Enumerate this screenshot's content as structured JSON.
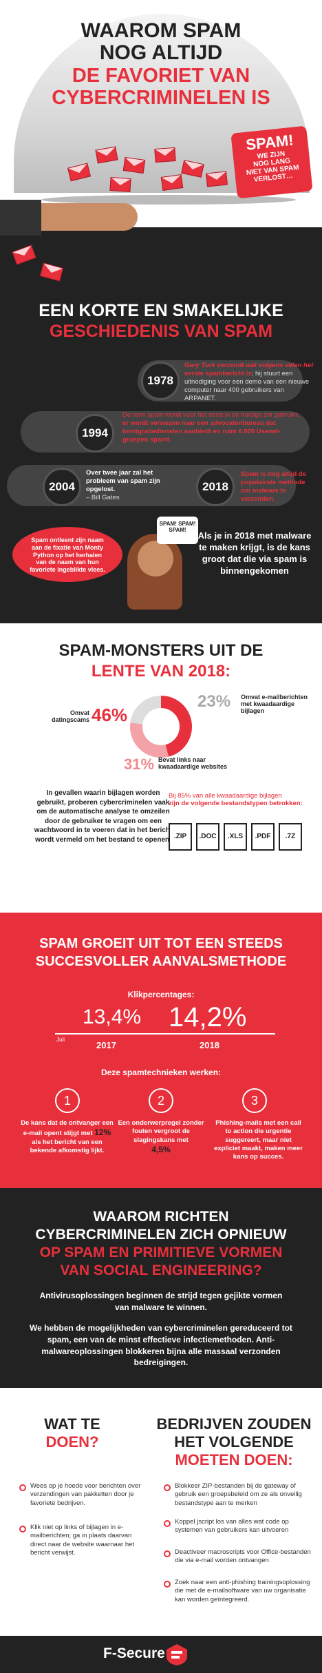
{
  "hero": {
    "title1": "WAAROM SPAM",
    "title2": "NOG ALTIJD",
    "title3": "DE FAVORIET VAN",
    "title4": "CYBERCRIMINELEN IS",
    "bubble_big": "SPAM!",
    "bubble_small1": "WE ZIJN",
    "bubble_small2": "NOG LANG",
    "bubble_small3": "NIET VAN SPAM",
    "bubble_small4": "VERLOST…"
  },
  "history": {
    "title1": "EEN KORTE EN SMAKELIJKE",
    "title2": "GESCHIEDENIS VAN SPAM",
    "y1978": "1978",
    "t1978a": "Gary Turk verzendt wat volgens velen het",
    "t1978b": "eerste spambericht is",
    "t1978c": "hij stuurt een uitnodiging voor een demo van een nieuwe computer naar 400 gebruikers van ARPANET.",
    "y1994": "1994",
    "t1994a": "De term spam wordt voor het eerst in de huidige zin gebruikt;",
    "t1994b": "er wordt verwezen naar een advocatenbureau dat immigratiediensten aanbiedt en ruim 6.000 Usenet-groepen spamt.",
    "y2004": "2004",
    "t2004a": "Over twee jaar zal het probleem van spam zijn opgelost.",
    "t2004b": "– Bill Gates",
    "y2018": "2018",
    "t2018": "Spam is nog altijd de populairste methode om malware te verzenden.",
    "monty": "Spam ontleent zijn naam aan de fixatie van Monty Python op het herhalen van de naam van hun favoriete ingeblikte vlees.",
    "spambubble": "SPAM! SPAM! SPAM!",
    "malware": "Als je in 2018 met malware te maken krijgt, is de kans groot dat die via spam is binnengekomen"
  },
  "monsters": {
    "title1": "SPAM-MONSTERS UIT DE",
    "title2": "LENTE VAN 2018:",
    "p46": "46%",
    "l46": "Omvat datingscams",
    "p23": "23%",
    "l23": "Omvat e-mailberichten met kwaadaardige bijlagen",
    "p31": "31%",
    "l31": "Bevat links naar kwaadaardige websites",
    "left": "In gevallen waarin bijlagen worden gebruikt, proberen cybercriminelen vaak om de automatische analyse te omzeilen door de gebruiker te vragen om een wachtwoord in te voeren dat in het bericht wordt vermeld om het bestand te openen.",
    "right1": "Bij 85% van alle kwaadaardige bijlagen",
    "right2": "zijn de volgende bestandstypen betrokken:",
    "files": [
      ".ZIP",
      ".DOC",
      ".XLS",
      ".PDF",
      ".7Z"
    ]
  },
  "growth": {
    "title1": "SPAM GROEIT UIT TOT EEN STEEDS",
    "title2": "SUCCESVOLLER AANVALSMETHODE",
    "klik": "Klikpercentages:",
    "v2017": "13,4%",
    "v2018": "14,2%",
    "juli": "Juli",
    "y2017": "2017",
    "y2018": "2018",
    "tech": "Deze spamtechnieken werken:",
    "n1": "1",
    "n2": "2",
    "n3": "3",
    "c1a": "De kans dat de ontvanger een e-mail opent stijgt met",
    "c1b": "12%",
    "c1c": "als het bericht van een bekende afkomstig lijkt.",
    "c2a": "Een onderwerpregel zonder fouten vergroot de slagingskans met",
    "c2b": "4,5%",
    "c3": "Phishing-mails met een call to action die urgentie suggereert, maar niet expliciet maakt, maken meer kans op succes."
  },
  "why": {
    "title1": "WAAROM RICHTEN",
    "title2": "CYBERCRIMINELEN ZICH OPNIEUW",
    "title3": "OP SPAM EN PRIMITIEVE VORMEN",
    "title4": "VAN SOCIAL ENGINEERING?",
    "p1": "Antivirusoplossingen beginnen de strijd tegen gejikte vormen van malware te winnen.",
    "p2": "We hebben de mogelijkheden van cybercriminelen gereduceerd tot spam, een van de minst effectieve infectiemethoden. Anti-malwareoplossingen blokkeren bijna alle massaal verzonden bedreigingen."
  },
  "todo": {
    "l1": "WAT TE",
    "l2": "DOEN?",
    "r1": "BEDRIJVEN ZOUDEN",
    "r2": "HET VOLGENDE",
    "r3": "MOETEN DOEN:",
    "left_items": [
      "Wees op je hoede voor berichten over verzendingen van pakketten door je favoriete bedrijven.",
      "Klik niet op links of bijlagen in e-mailberichten; ga in plaats daarvan direct naar de website waarnaar het bericht verwijst."
    ],
    "right_items": [
      "Blokkeer ZIP-bestanden bij de gateway of gebruik een groepsbeleid om ze als onveilig bestandstype aan te merken",
      "Koppel jscript los van alles wat code op systemen van gebruikers kan uitvoeren",
      "Deactiveer macroscripts voor Office-bestanden die via e-mail worden ontvangen",
      "Zoek naar een anti-phishing trainingsoplossing die met de e-mailsoftware van uw organisatie kan worden geïntegreerd."
    ]
  },
  "footer": {
    "brand": "F-Secure"
  },
  "colors": {
    "accent": "#e8303c",
    "dark": "#222222"
  }
}
